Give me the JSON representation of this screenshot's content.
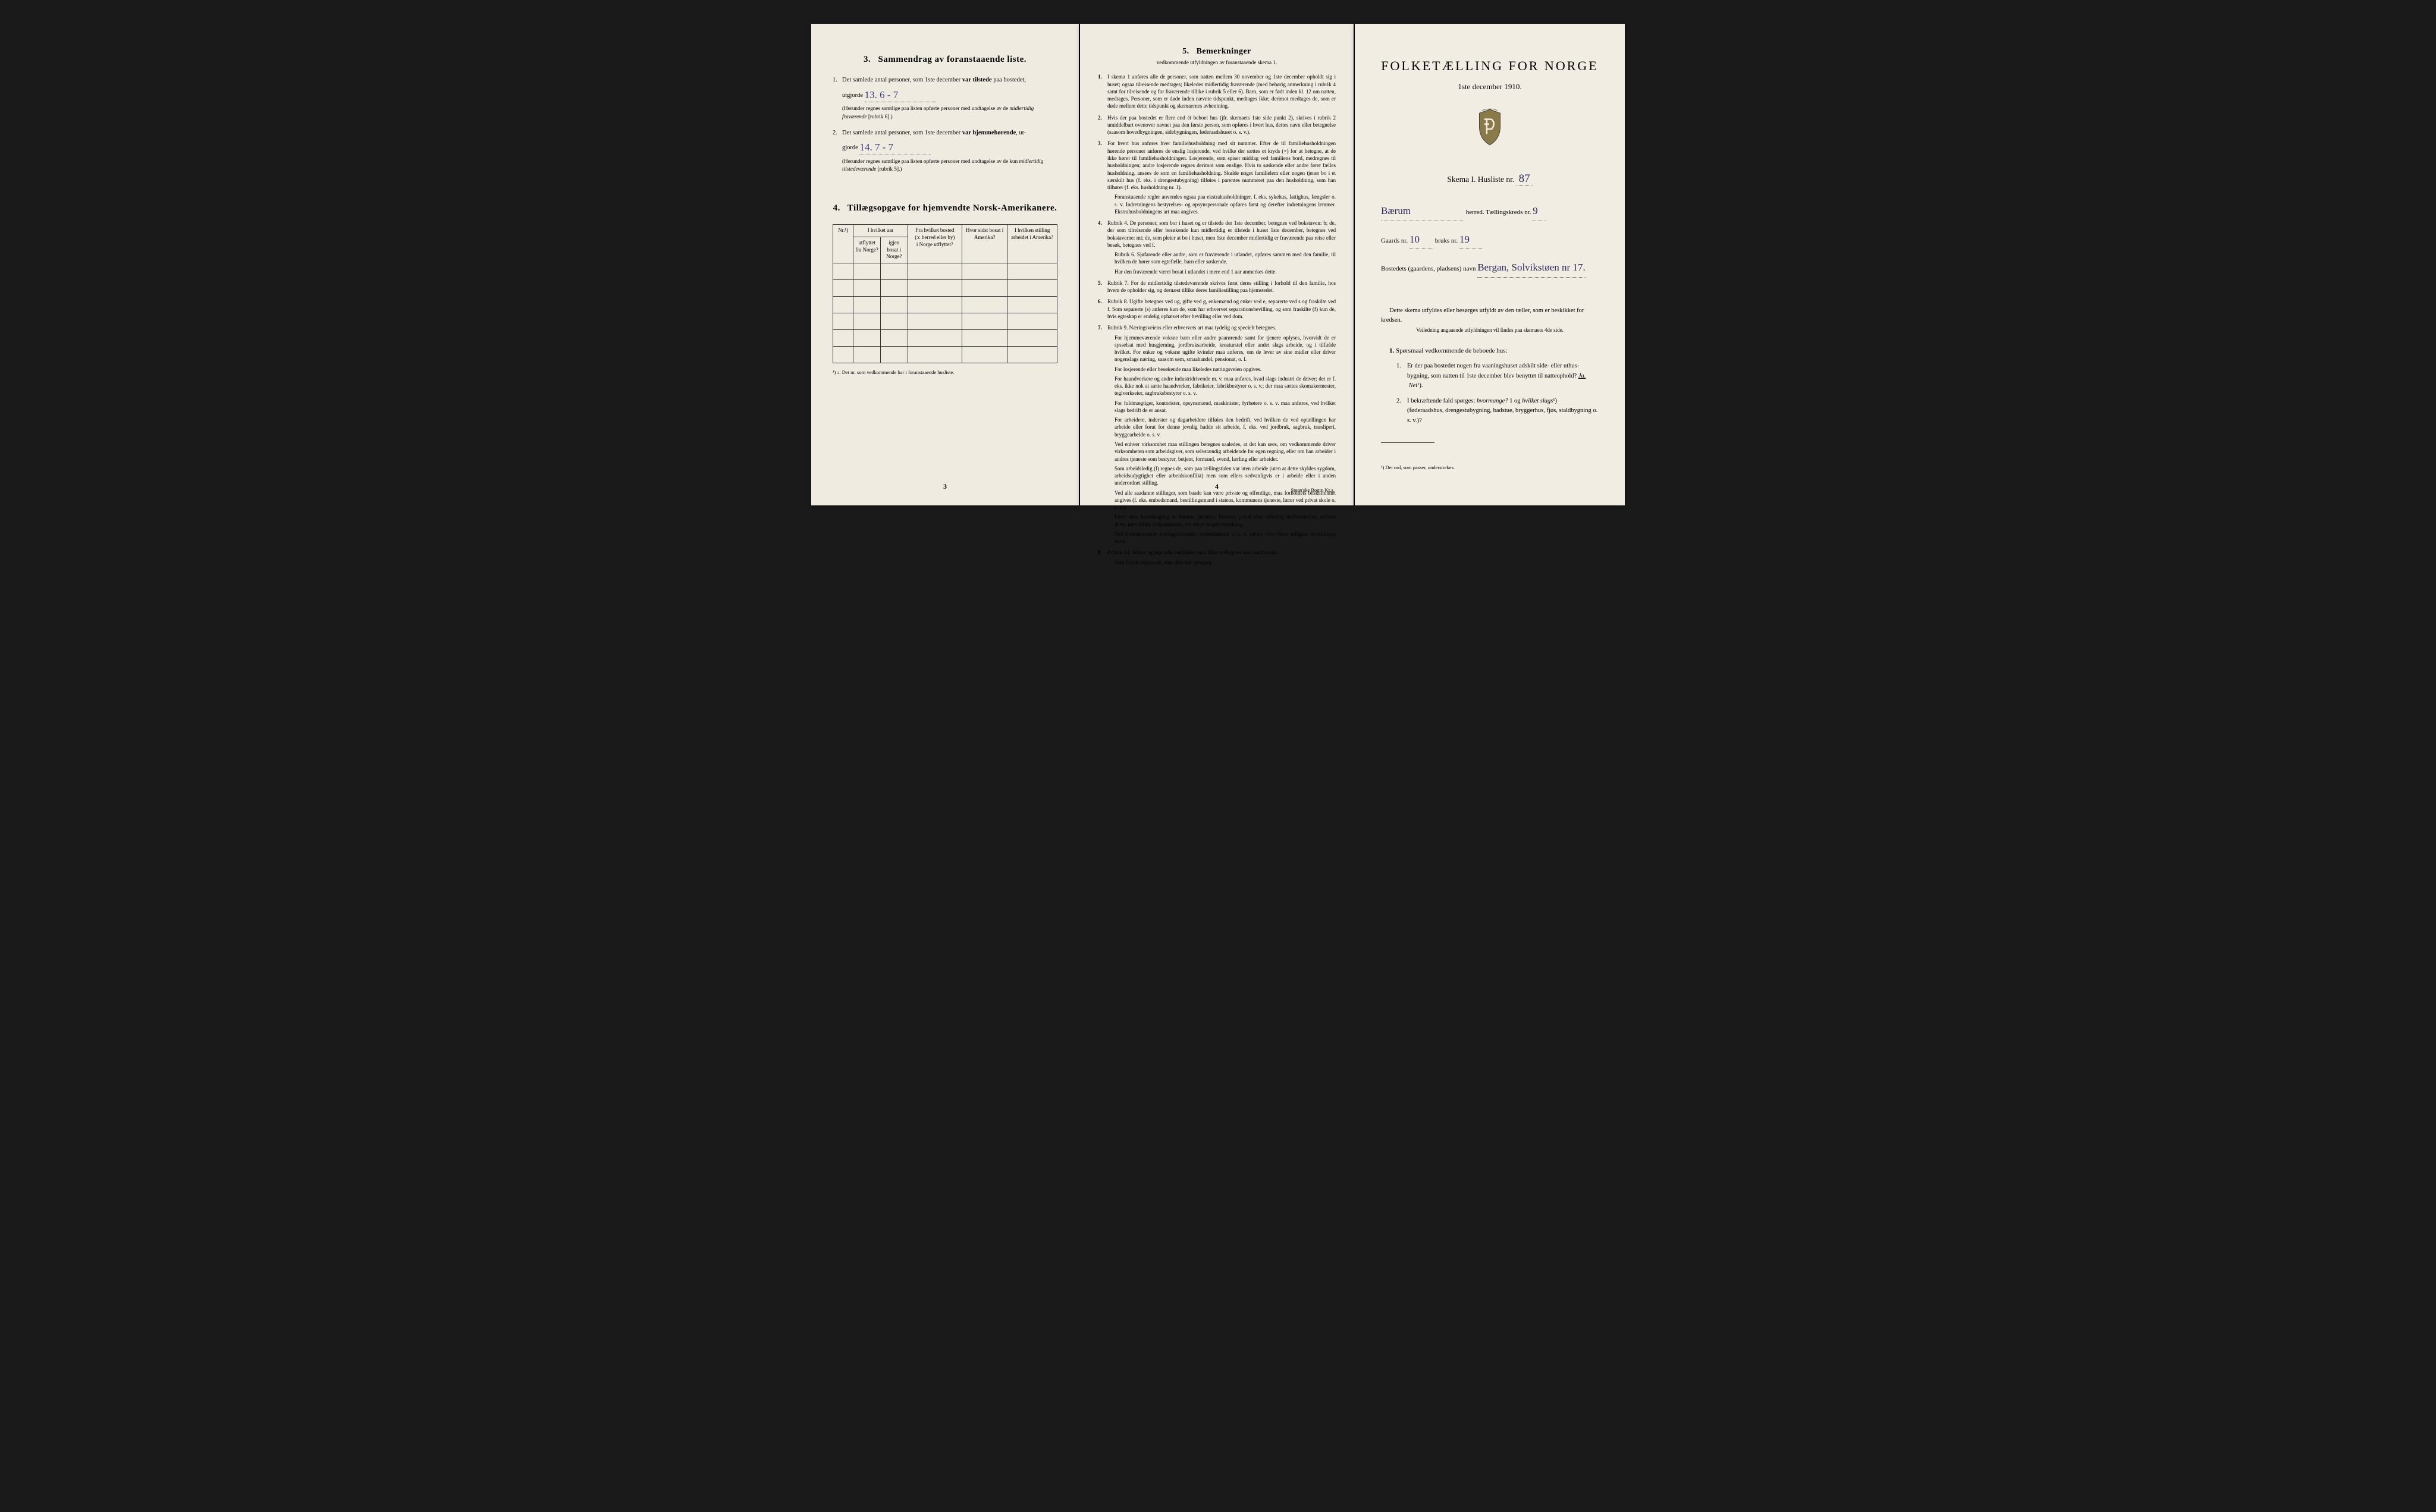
{
  "page1": {
    "section3": {
      "num": "3.",
      "title": "Sammendrag av foranstaaende liste.",
      "item1_num": "1.",
      "item1_text_a": "Det samlede antal personer, som 1ste december ",
      "item1_text_b": "var tilstede",
      "item1_text_c": " paa bostedet,",
      "item1_line2a": "utgjorde",
      "item1_hw": "13.   6 - 7",
      "item1_sub": "(Herunder regnes samtlige paa listen opførte personer med undtagelse av de ",
      "item1_sub_i": "midlertidig fraværende",
      "item1_sub_end": " [rubrik 6].)",
      "item2_num": "2.",
      "item2_text_a": "Det samlede antal personer, som 1ste december ",
      "item2_text_b": "var hjemmehørende",
      "item2_text_c": ", ut-",
      "item2_line2a": "gjorde",
      "item2_hw": "14.   7 - 7",
      "item2_sub": "(Herunder regnes samtlige paa listen opførte personer med undtagelse av de kun ",
      "item2_sub_i": "midlertidig tilstedeværende",
      "item2_sub_end": " [rubrik 5].)"
    },
    "section4": {
      "num": "4.",
      "title": "Tillægsopgave for hjemvendte Norsk-Amerikanere.",
      "headers": {
        "c1": "Nr.¹)",
        "c2a": "I hvilket aar",
        "c2b": "utflyttet fra Norge?",
        "c2c": "igjen bosat i Norge?",
        "c3a": "Fra hvilket bosted",
        "c3b": "(ɔ: herred eller by)",
        "c3c": "i Norge utflyttet?",
        "c4": "Hvor sidst bosat i Amerika?",
        "c5": "I hvilken stilling arbeidet i Amerika?"
      },
      "footnote": "¹) ɔ: Det nr. som vedkommende har i foranstaaende husliste."
    },
    "page_num": "3"
  },
  "page2": {
    "section5": {
      "num": "5.",
      "title": "Bemerkninger"
    },
    "sub_head": "vedkommende utfyldningen av foranstaaende skema 1.",
    "notes": [
      {
        "n": "1.",
        "t": "I skema 1 anføres alle de personer, som natten mellem 30 november og 1ste december opholdt sig i huset; ogsaa tilreisende medtages; likeledes midlertidig fraværende (med behørig anmerkning i rubrik 4 samt for tilreisende og for fraværende tillike i rubrik 5 eller 6). Barn, som er født inden kl. 12 om natten, medtages. Personer, som er døde inden nævnte tidspunkt, medtages ikke; derimot medtages de, som er døde mellem dette tidspunkt og skemaernes avhentning."
      },
      {
        "n": "2.",
        "t": "Hvis der paa bostedet er flere end ét beboet hus (jfr. skemaets 1ste side punkt 2), skrives i rubrik 2 umiddelbart ovenover navnet paa den første person, som opføres i hvert hus, dettes navn eller betegnelse (saasom hovedbygningen, sidebygningen, føderaadshuset o. s. v.)."
      },
      {
        "n": "3.",
        "t": "For hvert hus anføres hver familiehusholdning med sit nummer. Efter de til familiehusholdningen hørende personer anføres de enslig losjerende, ved hvilke der sættes et kryds (×) for at betegne, at de ikke hører til familiehusholdningen. Losjerende, som spiser middag ved familiens bord, medregnes til husholdningen; andre losjerende regnes derimot som enslige. Hvis to søskende eller andre fører fælles husholdning, ansees de som en familiehusholdning. Skulde noget familielem eller nogen tjener bo i et særskilt hus (f. eks. i drengestubygning) tilføies i parentes nummeret paa den husholdning, som han tilhører (f. eks. husholdning nr. 1).",
        "sub": "Foranstaaende regler anvendes ogsaa paa ekstrahusholdninger, f. eks. sykehus, fattighus, fængsler o. s. v. Indretningens bestyrelses- og opsynspersonale opføres først og derefter indretningens lemmer. Ekstrahusholdningens art maa angives."
      },
      {
        "n": "4.",
        "t": "Rubrik 4. De personer, som bor i huset og er tilstede der 1ste december, betegnes ved bokstaven: b; de, der som tilreisende eller besøkende kun midlertidig er tilstede i huset 1ste december, betegnes ved bokstaverne: mt; de, som pleier at bo i huset, men 1ste december midlertidig er fraværende paa reise eller besøk, betegnes ved f.",
        "sub": "Rubrik 6. Sjøfarende eller andre, som er fraværende i utlandet, opføres sammen med den familie, til hvilken de hører som egtefælle, barn eller søskende.",
        "sub2": "Har den fraværende været bosat i utlandet i mere end 1 aar anmerkes dette."
      },
      {
        "n": "5.",
        "t": "Rubrik 7. For de midlertidig tilstedeværende skrives først deres stilling i forhold til den familie, hos hvem de opholder sig, og dernæst tillike deres familiestilling paa hjemstedet."
      },
      {
        "n": "6.",
        "t": "Rubrik 8. Ugifte betegnes ved ug, gifte ved g, enkemænd og enker ved e, separerte ved s og fraskilte ved f. Som separerte (s) anføres kun de, som har erhvervet separationsbevilling, og som fraskilte (f) kun de, hvis egteskap er endelig ophævet efter bevilling eller ved dom."
      },
      {
        "n": "7.",
        "t": "Rubrik 9. Næringsveiens eller erhvervets art maa tydelig og specielt betegnes.",
        "paras": [
          "For hjemmeværende voksne barn eller andre paarørende samt for tjenere oplyses, hvorvidt de er sysselsat med husgjerning, jordbruksarbeide, kreaturstel eller andet slags arbeide, og i tilfælde hvilket. For enker og voksne ugifte kvinder maa anføres, om de lever av sine midler eller driver nogenslags næring, saasom søm, smaahandel, pensionat, o. l.",
          "For losjerende eller besøkende maa likeledes næringsveien opgives.",
          "For haandverkere og andre industridrivende m. v. maa anføres, hvad slags industri de driver; det er f. eks. ikke nok at sætte haandverker, fabrikeier, fabrikbestyrer o. s. v.; der maa sættes skomakermester, teglverkseier, sagbruksbestyrer o. s. v.",
          "For fuldmægtiger, kontorister, opsynsmænd, maskinister, fyrbøtere o. s. v. maa anføres, ved hvilket slags bedrift de er ansat.",
          "For arbeidere, inderster og dagarbeidere tilføies den bedrift, ved hvilken de ved optællingen har arbeide eller forut for denne jevnlig hadde sit arbeide, f. eks. ved jordbruk, sagbruk, træsliperi, bryggearbeide o. s. v.",
          "Ved enhver virksomhet maa stillingen betegnes saaledes, at det kan sees, om vedkommende driver virksomheten som arbeidsgiver, som selvstændig arbeidende for egen regning, eller om han arbeider i andres tjeneste som bestyrer, betjent, formand, svend, lærling eller arbeider.",
          "Som arbeidsledig (l) regnes de, som paa tællingstiden var uten arbeide (uten at dette skyldes sygdom, arbeidsudygtighet eller arbeidskonflikt) men som ellers sedvanligvis er i arbeide eller i anden underordnet stilling.",
          "Ved alle saadanne stillinger, som baade kan være private og offentlige, maa forholdets beskaffenhet angives (f. eks. embedsmand, bestillingsmand i statens, kommunens tjeneste, lærer ved privat skole o. s. v.).",
          "Lever man hovedsagelig av formue, pension, livrente, privat eller offentlig understøttelse, anføres dette, men tillike virksomheten, om der er nogen betydning.",
          "Ved forhenværende næringsdrivende, embedsmænd o. s. v. sættes «fv» foran tidligere livsstillings navn."
        ]
      },
      {
        "n": "8.",
        "t": "Rubrik 14. Sinker og lignende aandsløve maa ikke medregnes som aandssvake.",
        "sub": "Som blinde regnes de, som ikke har gangsyn."
      }
    ],
    "page_num": "4",
    "publisher": "Steen'ske Bogtr.  Kr.a."
  },
  "page3": {
    "main_title": "FOLKETÆLLING FOR NORGE",
    "date": "1ste december 1910.",
    "skema_label": "Skema I.  Husliste nr.",
    "skema_hw": "87",
    "herred_hw": "Bærum",
    "herred_suffix": "herred.  Tællingskreds nr.",
    "kreds_hw": "9",
    "gaards_label": "Gaards nr.",
    "gaards_hw": "10",
    "bruks_label": "bruks nr.",
    "bruks_hw": "19",
    "bosted_label": "Bostedets (gaardens, pladsens) navn",
    "bosted_hw": "Bergan, Solvikstøen nr 17.",
    "instr1": "Dette skema utfyldes eller besørges utfyldt av den tæller, som er beskikket for kredsen.",
    "instr2": "Veiledning angaaende utfyldningen vil findes paa skemaets 4de side.",
    "q_head_num": "1.",
    "q_head": "Spørsmaal vedkommende de beboede hus:",
    "q1_num": "1.",
    "q1_text_a": "Er der paa bostedet nogen fra vaaningshuset adskilt side- eller uthus-bygning, som natten til 1ste december blev benyttet til natteophold?  ",
    "q1_ja": "Ja.",
    "q1_nei": "Nei",
    "q1_sup": "¹).",
    "q2_num": "2.",
    "q2_text_a": "I bekræftende fald spørges: ",
    "q2_i1": "hvormange?",
    "q2_hw": "1",
    "q2_text_b": "og ",
    "q2_i2": "hvilket slags",
    "q2_sup": "¹)",
    "q2_text_c": "(føderaadshus, drengestubygning, badstue, bryggerhus, fjøs, staldbygning o. s. v.)?",
    "footnote": "¹) Det ord, som passer, understrekes."
  },
  "style": {
    "bg_page": "#f0ebe0",
    "bg_black": "#1a1a1a",
    "ink": "#222222",
    "hw_color": "#3b3a7a"
  }
}
